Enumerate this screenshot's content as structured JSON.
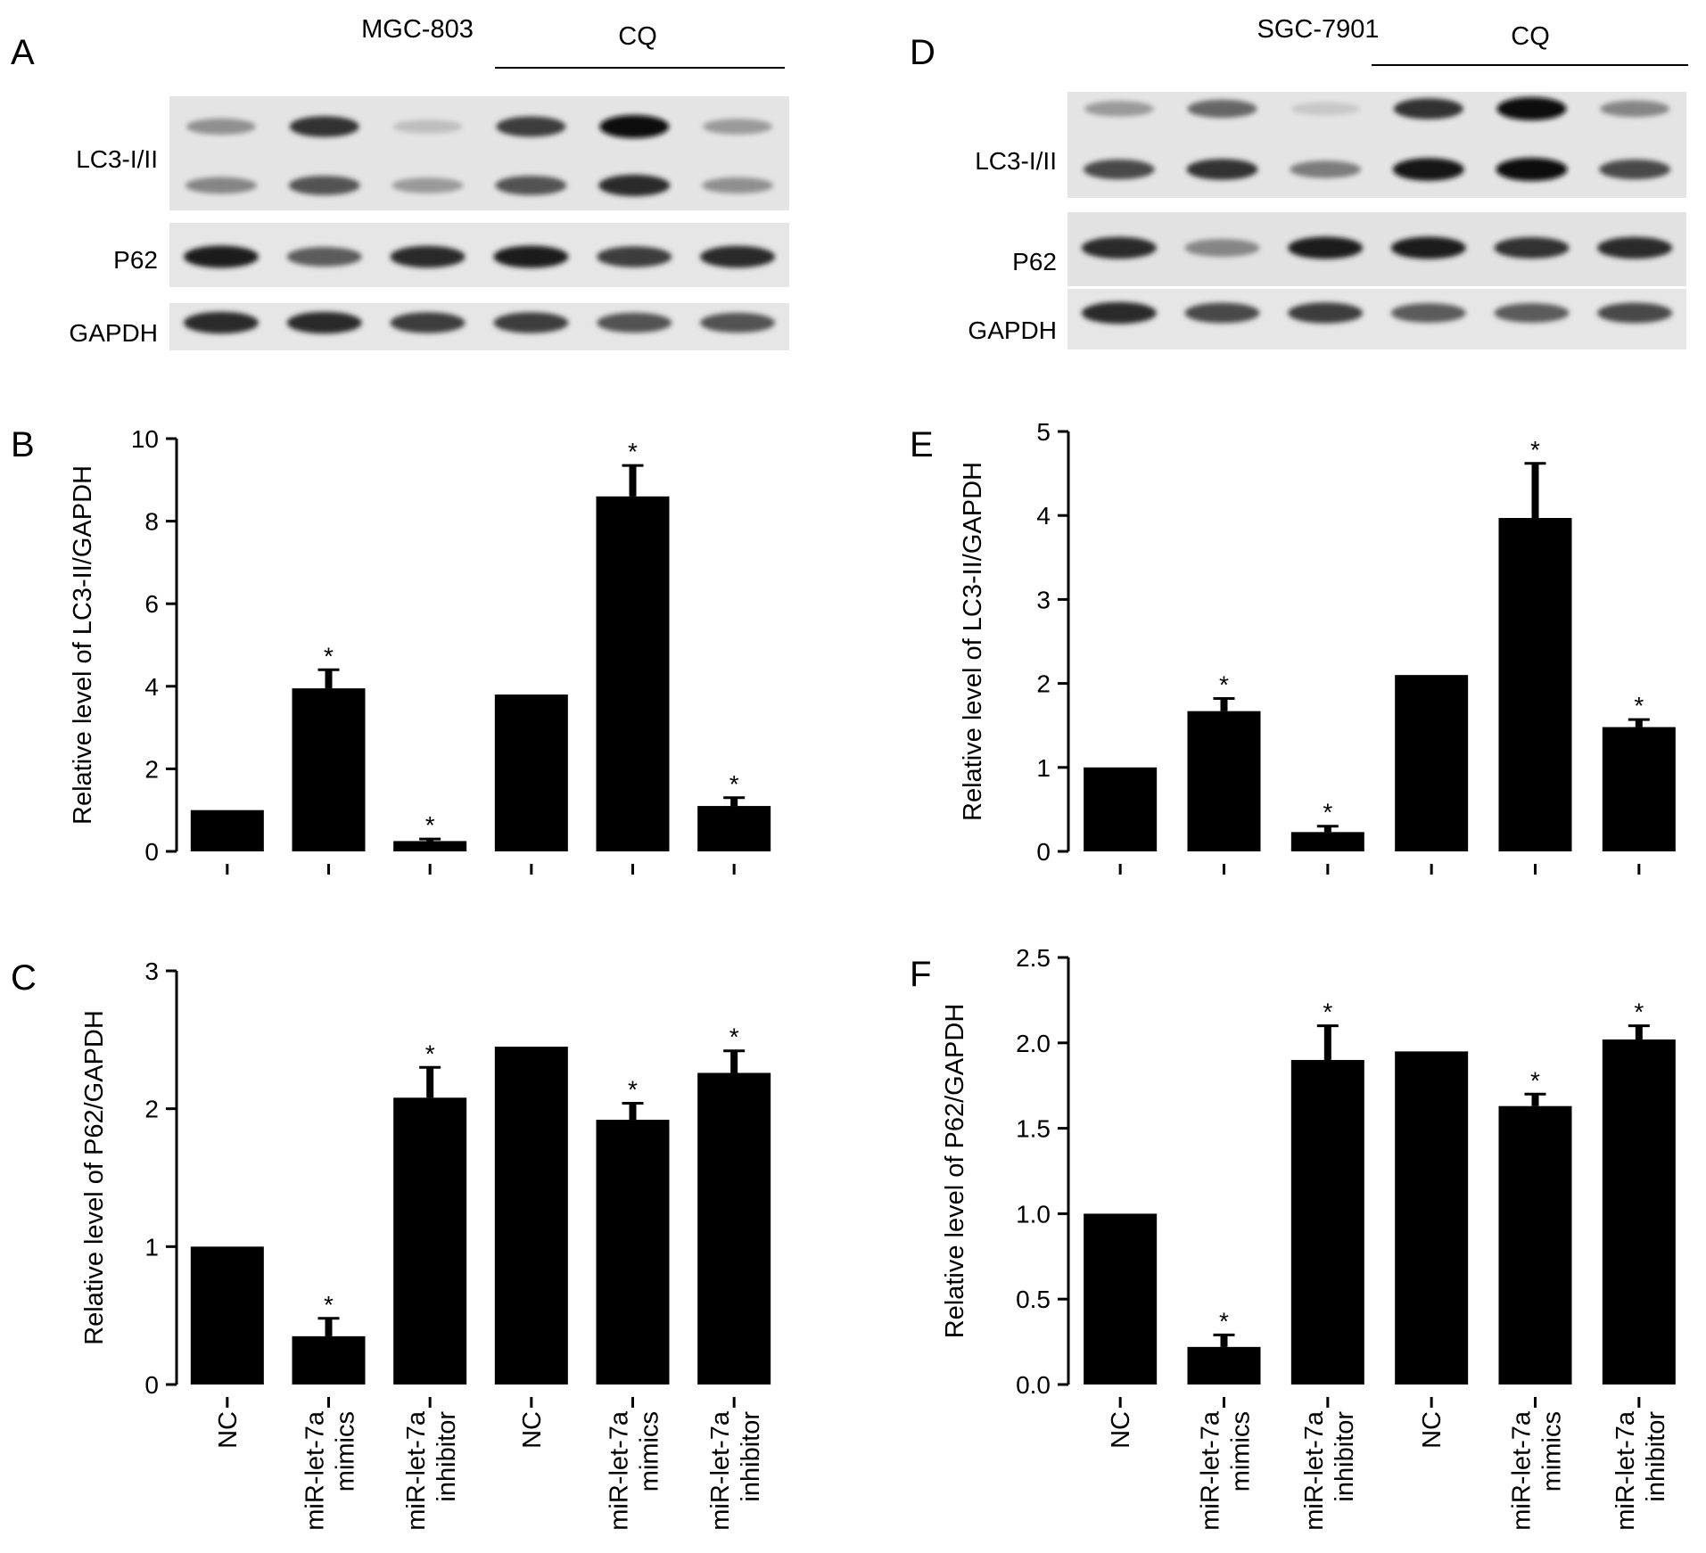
{
  "figure": {
    "categories": [
      "NC",
      "miR-let-7a mimics",
      "miR-let-7a inhibitor",
      "NC",
      "miR-let-7a mimics",
      "miR-let-7a inhibitor"
    ],
    "category_lines": [
      [
        "NC"
      ],
      [
        "miR-let-7a",
        "mimics"
      ],
      [
        "miR-let-7a",
        "inhibitor"
      ],
      [
        "NC"
      ],
      [
        "miR-let-7a",
        "mimics"
      ],
      [
        "miR-let-7a",
        "inhibitor"
      ]
    ]
  },
  "blots": [
    {
      "panel": "A",
      "cell_line": "MGC-803",
      "treatment": "CQ",
      "rows": [
        {
          "label": "LC3-I/II",
          "lanes_upper": [
            0.35,
            0.8,
            0.12,
            0.75,
            1.0,
            0.3
          ],
          "lanes_lower": [
            0.4,
            0.65,
            0.3,
            0.65,
            0.85,
            0.35
          ]
        },
        {
          "label": "P62",
          "lanes": [
            0.9,
            0.6,
            0.85,
            0.9,
            0.75,
            0.85
          ]
        },
        {
          "label": "GAPDH",
          "lanes": [
            0.85,
            0.85,
            0.75,
            0.75,
            0.65,
            0.65
          ]
        }
      ]
    },
    {
      "panel": "D",
      "cell_line": "SGC-7901",
      "treatment": "CQ",
      "rows": [
        {
          "label": "LC3-I/II",
          "lanes_upper": [
            0.3,
            0.55,
            0.08,
            0.8,
            1.0,
            0.4
          ],
          "lanes_lower": [
            0.7,
            0.8,
            0.45,
            0.95,
            1.0,
            0.7
          ]
        },
        {
          "label": "P62",
          "lanes": [
            0.85,
            0.4,
            0.9,
            0.9,
            0.8,
            0.85
          ]
        },
        {
          "label": "GAPDH",
          "lanes": [
            0.85,
            0.7,
            0.75,
            0.6,
            0.6,
            0.7
          ]
        }
      ]
    }
  ],
  "chart_data": [
    {
      "panel": "B",
      "type": "bar",
      "categories": [
        "NC",
        "miR-let-7a mimics",
        "miR-let-7a inhibitor",
        "NC",
        "miR-let-7a mimics",
        "miR-let-7a inhibitor"
      ],
      "values": [
        1.0,
        3.95,
        0.25,
        3.8,
        8.6,
        1.1
      ],
      "errors": [
        0,
        0.45,
        0.05,
        0,
        0.75,
        0.2
      ],
      "significance": [
        "",
        "*",
        "*",
        "",
        "*",
        "*"
      ],
      "ylabel": "Relative level of LC3-II/GAPDH",
      "ylim": [
        0,
        10
      ],
      "yticks": [
        0,
        2,
        4,
        6,
        8,
        10
      ],
      "ytick_labels": [
        "0",
        "2",
        "4",
        "6",
        "8",
        "10"
      ],
      "color": "#000000",
      "grid": false
    },
    {
      "panel": "C",
      "type": "bar",
      "categories": [
        "NC",
        "miR-let-7a mimics",
        "miR-let-7a inhibitor",
        "NC",
        "miR-let-7a mimics",
        "miR-let-7a inhibitor"
      ],
      "values": [
        1.0,
        0.35,
        2.08,
        2.45,
        1.92,
        2.26
      ],
      "errors": [
        0,
        0.13,
        0.22,
        0,
        0.12,
        0.16
      ],
      "significance": [
        "",
        "*",
        "*",
        "",
        "*",
        "*"
      ],
      "ylabel": "Relative level of P62/GAPDH",
      "ylim": [
        0,
        3
      ],
      "yticks": [
        0,
        1,
        2,
        3
      ],
      "ytick_labels": [
        "0",
        "1",
        "2",
        "3"
      ],
      "color": "#000000",
      "grid": false
    },
    {
      "panel": "E",
      "type": "bar",
      "categories": [
        "NC",
        "miR-let-7a mimics",
        "miR-let-7a inhibitor",
        "NC",
        "miR-let-7a mimics",
        "miR-let-7a inhibitor"
      ],
      "values": [
        1.0,
        1.67,
        0.23,
        2.1,
        3.97,
        1.48
      ],
      "errors": [
        0,
        0.15,
        0.07,
        0,
        0.65,
        0.09
      ],
      "significance": [
        "",
        "*",
        "*",
        "",
        "*",
        "*"
      ],
      "ylabel": "Relative level of LC3-II/GAPDH",
      "ylim": [
        0,
        5
      ],
      "yticks": [
        0,
        1,
        2,
        3,
        4,
        5
      ],
      "ytick_labels": [
        "0",
        "1",
        "2",
        "3",
        "4",
        "5"
      ],
      "color": "#000000",
      "grid": false
    },
    {
      "panel": "F",
      "type": "bar",
      "categories": [
        "NC",
        "miR-let-7a mimics",
        "miR-let-7a inhibitor",
        "NC",
        "miR-let-7a mimics",
        "miR-let-7a inhibitor"
      ],
      "values": [
        1.0,
        0.22,
        1.9,
        1.95,
        1.63,
        2.02
      ],
      "errors": [
        0,
        0.07,
        0.2,
        0,
        0.07,
        0.08
      ],
      "significance": [
        "",
        "*",
        "*",
        "",
        "*",
        "*"
      ],
      "ylabel": "Relative level of P62/GAPDH",
      "ylim": [
        0,
        2.5
      ],
      "yticks": [
        0,
        0.5,
        1.0,
        1.5,
        2.0,
        2.5
      ],
      "ytick_labels": [
        "0.0",
        "0.5",
        "1.0",
        "1.5",
        "2.0",
        "2.5"
      ],
      "color": "#000000",
      "grid": false
    }
  ]
}
